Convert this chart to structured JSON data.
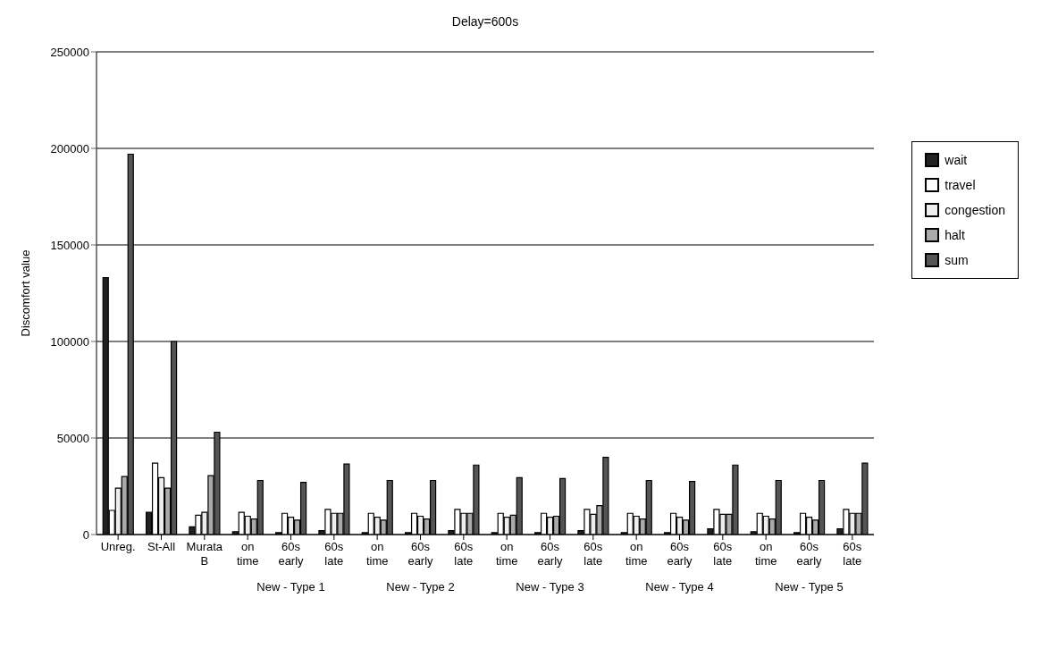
{
  "chart_data": {
    "type": "bar",
    "title": "Delay=600s",
    "ylabel": "Discomfort value",
    "categories": [
      "Unreg.",
      "St-All",
      "Murata B",
      "on time",
      "60s early",
      "60s late",
      "on time",
      "60s early",
      "60s late",
      "on time",
      "60s early",
      "60s late",
      "on time",
      "60s early",
      "60s late",
      "on time",
      "60s early",
      "60s late"
    ],
    "annotations": [
      "New - Type 1",
      "New - Type 2",
      "New - Type 3",
      "New - Type 4",
      "New - Type 5"
    ],
    "series": [
      {
        "name": "wait",
        "color": "#222222",
        "values": [
          133000,
          11500,
          4000,
          1500,
          1000,
          2000,
          1000,
          1000,
          2000,
          1000,
          1000,
          2000,
          1000,
          1000,
          3000,
          1500,
          1000,
          3000
        ]
      },
      {
        "name": "travel",
        "color": "#ffffff",
        "values": [
          12500,
          37000,
          10000,
          11500,
          11000,
          13000,
          11000,
          11000,
          13000,
          11000,
          11000,
          13000,
          11000,
          11000,
          13000,
          11000,
          11000,
          13000
        ]
      },
      {
        "name": "congestion",
        "color": "#eeeeee",
        "values": [
          24000,
          29500,
          11500,
          9500,
          9000,
          11000,
          9000,
          9500,
          11000,
          9000,
          9000,
          10500,
          9500,
          9000,
          10500,
          9500,
          9000,
          11000
        ]
      },
      {
        "name": "halt",
        "color": "#aaaaaa",
        "values": [
          30000,
          24000,
          30500,
          8000,
          7500,
          11000,
          7500,
          8000,
          11000,
          10000,
          9500,
          15000,
          8000,
          7500,
          10500,
          8000,
          7500,
          11000
        ]
      },
      {
        "name": "sum",
        "color": "#555555",
        "values": [
          197000,
          100000,
          53000,
          28000,
          27000,
          36500,
          28000,
          28000,
          36000,
          29500,
          29000,
          40000,
          28000,
          27500,
          36000,
          28000,
          28000,
          37000
        ]
      }
    ],
    "ylim": [
      0,
      250000
    ],
    "yticks": [
      0,
      50000,
      100000,
      150000,
      200000,
      250000
    ],
    "grid": "y",
    "legend": "right"
  }
}
